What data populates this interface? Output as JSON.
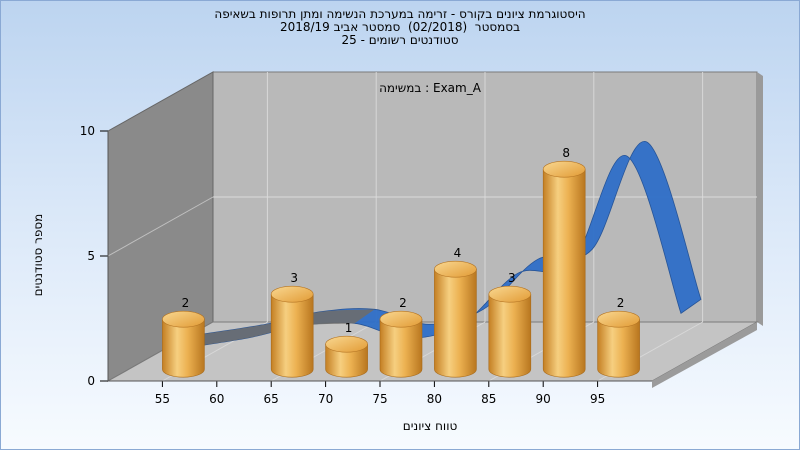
{
  "titles": {
    "line1": "היסטוגרמת ציונים בקורס - זרימה במערכת הנשימה ומתן תרופות בשאיפה",
    "line2": "בסמסטר  (02/2018)  סמסטר אביב 2018/19",
    "line3": "סטודנטים רשומים - 25"
  },
  "chart_data": {
    "type": "bar",
    "style": "3d-cylinder",
    "annotation": "במשימה : Exam_A",
    "xlabel": "טווח ציונים",
    "ylabel": "מספר סטודנטים",
    "x_ticks": [
      "55",
      "60",
      "65",
      "70",
      "75",
      "80",
      "85",
      "90",
      "95"
    ],
    "y_ticks": [
      "0",
      "5",
      "10"
    ],
    "ylim": [
      0,
      10
    ],
    "categories": [
      55,
      65,
      70,
      75,
      80,
      85,
      90,
      95
    ],
    "values": [
      2,
      3,
      1,
      2,
      4,
      3,
      8,
      2
    ],
    "value_labels": [
      "2",
      "3",
      "1",
      "2",
      "4",
      "3",
      "8",
      "2"
    ],
    "curve": {
      "type": "ribbon",
      "x": [
        50,
        57.5,
        62.5,
        67.5,
        72.5,
        77.5,
        82.5,
        87.5,
        92.5,
        97.5
      ],
      "y": [
        0,
        0.5,
        1.0,
        1.1,
        0.5,
        1.1,
        3.1,
        3.5,
        7.8,
        1.5
      ]
    },
    "colors": {
      "bar": "#e8a441",
      "bar_light": "#f6cc7c",
      "bar_dark": "#c8842a",
      "curve": "#2f6fc8",
      "curve_back": "#6d6d6d",
      "wall_back": "#b9b9b9",
      "wall_left": "#8a8a8a",
      "floor": "#c4c4c4"
    }
  }
}
